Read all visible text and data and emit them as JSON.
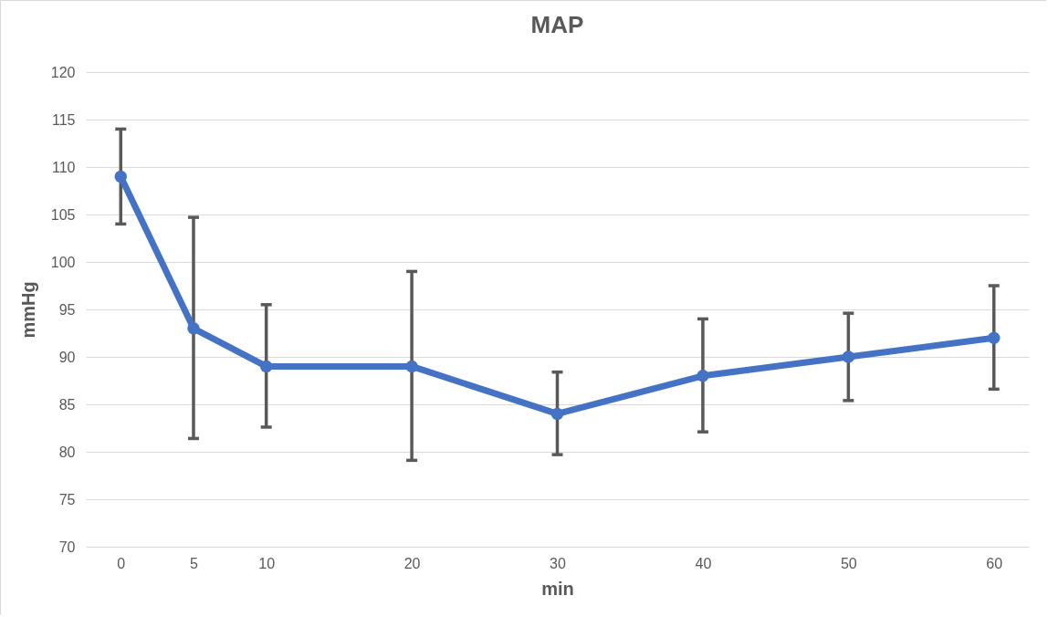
{
  "chart_data": {
    "type": "line",
    "title": "MAP",
    "xlabel": "min",
    "ylabel": "mmHg",
    "x": [
      0,
      5,
      10,
      20,
      30,
      40,
      50,
      60
    ],
    "series": [
      {
        "color": "#4472c4",
        "values": [
          109,
          93,
          89,
          89,
          84,
          88,
          90,
          92
        ],
        "errors": [
          [
            104,
            114
          ],
          [
            81.4,
            104.7
          ],
          [
            82.6,
            95.5
          ],
          [
            79.1,
            99
          ],
          [
            79.7,
            88.4
          ],
          [
            82.1,
            94
          ],
          [
            85.4,
            94.6
          ],
          [
            86.6,
            97.5
          ]
        ]
      }
    ],
    "xlim": [
      -2.4,
      62.4
    ],
    "xticks": [
      0,
      5,
      10,
      20,
      30,
      40,
      50,
      60
    ],
    "ylim": [
      70,
      120
    ],
    "yticks": [
      70,
      75,
      80,
      85,
      90,
      95,
      100,
      105,
      110,
      115,
      120
    ],
    "grid": "y",
    "marker": "circle",
    "line_style": "solid"
  }
}
